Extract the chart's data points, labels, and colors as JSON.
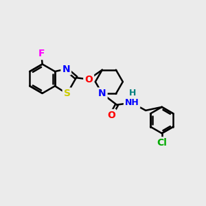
{
  "background_color": "#ebebeb",
  "bond_color": "#000000",
  "atom_colors": {
    "N": "#0000ff",
    "O": "#ff0000",
    "S": "#cccc00",
    "F": "#ff00ff",
    "Cl": "#00aa00",
    "H": "#008080",
    "C": "#000000"
  },
  "bond_width": 1.8,
  "font_size": 10,
  "figsize": [
    3.0,
    3.0
  ],
  "dpi": 100
}
